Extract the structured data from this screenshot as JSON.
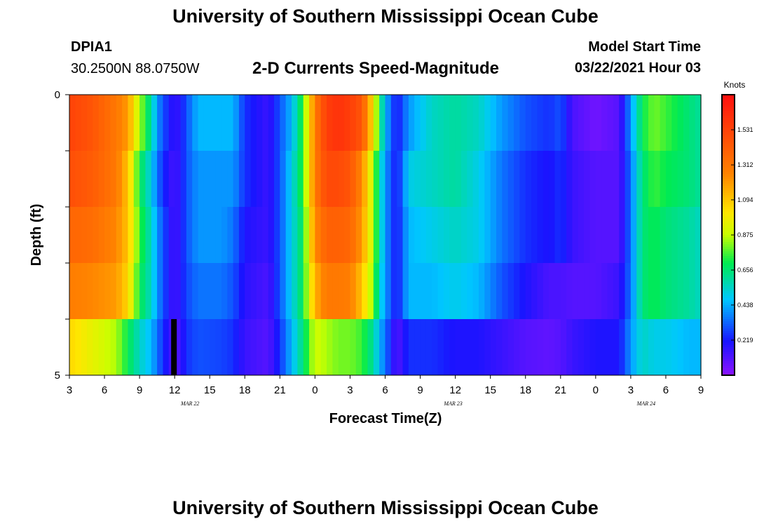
{
  "page": {
    "title": "University of Southern Mississippi Ocean Cube",
    "footer_title": "University of Southern Mississippi Ocean Cube"
  },
  "header": {
    "station": "DPIA1",
    "coords": "30.2500N 88.0750W",
    "subtitle": "2-D Currents Speed-Magnitude",
    "model_label": "Model Start Time",
    "model_time": "03/22/2021 Hour 03"
  },
  "chart_data": {
    "type": "heatmap",
    "title": "2-D Currents Speed-Magnitude",
    "xlabel": "Forecast Time(Z)",
    "ylabel": "Depth (ft)",
    "ylim": [
      0,
      5
    ],
    "y_tick_labels": [
      "0",
      "5"
    ],
    "x_tick_labels": [
      "3",
      "6",
      "9",
      "12",
      "15",
      "18",
      "21",
      "0",
      "3",
      "6",
      "9",
      "12",
      "15",
      "18",
      "21",
      "0",
      "3",
      "6",
      "9"
    ],
    "date_labels": [
      "MAR 22",
      "MAR 23",
      "MAR 24"
    ],
    "x_start_hour": 3,
    "x_end_hour": 57,
    "step_hours": 0.5,
    "depth_layers": 5,
    "colorbar": {
      "unit": "Knots",
      "min": 0.0,
      "max": 1.75,
      "ticks": [
        "1.531",
        "1.312",
        "1.094",
        "0.875",
        "0.656",
        "0.438",
        "0.219"
      ]
    },
    "key_points_hours": [
      3,
      5,
      7,
      8,
      9,
      10,
      10.5,
      11,
      12,
      12.5,
      13,
      14,
      16,
      17,
      18,
      20,
      21,
      22,
      23,
      24,
      25,
      26,
      27,
      28,
      29,
      29.5,
      30,
      31,
      32,
      34,
      36,
      38,
      40,
      42,
      44,
      45,
      46,
      48,
      50,
      51,
      52,
      53,
      54,
      56,
      57
    ],
    "layers": [
      {
        "depth": "0-1",
        "values": [
          1.53,
          1.45,
          1.3,
          1.2,
          0.85,
          0.6,
          0.4,
          0.3,
          0.15,
          0.2,
          0.3,
          0.45,
          0.45,
          0.45,
          0.25,
          0.15,
          0.3,
          0.45,
          0.75,
          1.3,
          1.55,
          1.6,
          1.55,
          1.45,
          1.0,
          0.7,
          0.45,
          0.2,
          0.4,
          0.55,
          0.6,
          0.55,
          0.4,
          0.3,
          0.25,
          0.3,
          0.12,
          0.05,
          0.1,
          0.4,
          0.7,
          0.8,
          0.75,
          0.65,
          0.6
        ]
      },
      {
        "depth": "1-2",
        "values": [
          1.48,
          1.42,
          1.3,
          1.1,
          0.7,
          0.5,
          0.35,
          0.25,
          0.12,
          0.2,
          0.3,
          0.4,
          0.4,
          0.4,
          0.25,
          0.15,
          0.3,
          0.5,
          0.75,
          1.3,
          1.5,
          1.5,
          1.45,
          1.25,
          0.85,
          0.6,
          0.4,
          0.2,
          0.5,
          0.55,
          0.6,
          0.5,
          0.35,
          0.25,
          0.2,
          0.25,
          0.15,
          0.1,
          0.1,
          0.35,
          0.65,
          0.75,
          0.7,
          0.65,
          0.6
        ]
      },
      {
        "depth": "2-3",
        "values": [
          1.38,
          1.35,
          1.25,
          1.1,
          0.75,
          0.55,
          0.4,
          0.3,
          0.12,
          0.2,
          0.3,
          0.4,
          0.4,
          0.35,
          0.2,
          0.15,
          0.3,
          0.5,
          0.7,
          1.25,
          1.4,
          1.4,
          1.38,
          1.2,
          0.85,
          0.6,
          0.4,
          0.2,
          0.45,
          0.5,
          0.55,
          0.5,
          0.35,
          0.25,
          0.2,
          0.25,
          0.15,
          0.1,
          0.1,
          0.35,
          0.65,
          0.7,
          0.65,
          0.6,
          0.55
        ]
      },
      {
        "depth": "3-4",
        "values": [
          1.28,
          1.25,
          1.2,
          1.05,
          0.7,
          0.55,
          0.4,
          0.3,
          0.12,
          0.2,
          0.28,
          0.35,
          0.35,
          0.3,
          0.18,
          0.12,
          0.3,
          0.5,
          0.7,
          1.15,
          1.3,
          1.3,
          1.28,
          1.1,
          0.8,
          0.55,
          0.4,
          0.2,
          0.45,
          0.45,
          0.5,
          0.45,
          0.3,
          0.2,
          0.12,
          0.12,
          0.1,
          0.1,
          0.15,
          0.35,
          0.65,
          0.7,
          0.65,
          0.6,
          0.55
        ]
      },
      {
        "depth": "4-5",
        "values": [
          1.05,
          0.95,
          0.85,
          0.7,
          0.55,
          0.45,
          0.35,
          0.25,
          0.1,
          0.15,
          0.25,
          0.3,
          0.28,
          0.25,
          0.15,
          0.1,
          0.25,
          0.45,
          0.65,
          0.9,
          0.85,
          0.8,
          0.8,
          0.75,
          0.6,
          0.45,
          0.35,
          0.1,
          0.25,
          0.25,
          0.2,
          0.2,
          0.15,
          0.1,
          0.08,
          0.1,
          0.15,
          0.2,
          0.2,
          0.4,
          0.55,
          0.5,
          0.5,
          0.45,
          0.45
        ]
      }
    ],
    "marker": {
      "hour": 12,
      "depth_layer": 5,
      "note": "black block"
    }
  }
}
